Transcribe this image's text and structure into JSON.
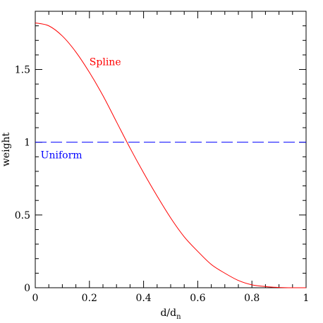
{
  "chart_data": {
    "type": "line",
    "title": "",
    "xlabel": "d/d",
    "xlabel_subscript": "n",
    "ylabel": "weight",
    "xlim": [
      0,
      1
    ],
    "ylim": [
      0,
      1.9
    ],
    "x_ticks": [
      "0",
      "0.2",
      "0.4",
      "0.6",
      "0.8",
      "1"
    ],
    "y_ticks": [
      "0",
      "0.5",
      "1",
      "1.5"
    ],
    "grid": false,
    "series": [
      {
        "name": "Spline",
        "color": "#ff0000",
        "style": "solid",
        "x": [
          0,
          0.05,
          0.1,
          0.15,
          0.2,
          0.25,
          0.3,
          0.35,
          0.4,
          0.45,
          0.5,
          0.55,
          0.6,
          0.65,
          0.7,
          0.75,
          0.8,
          0.85,
          0.9,
          0.95,
          1.0
        ],
        "y": [
          1.82,
          1.8,
          1.73,
          1.62,
          1.48,
          1.32,
          1.14,
          0.96,
          0.79,
          0.63,
          0.48,
          0.35,
          0.25,
          0.16,
          0.1,
          0.05,
          0.02,
          0.008,
          0.002,
          0.0,
          0.0
        ]
      },
      {
        "name": "Uniform",
        "color": "#0000ff",
        "style": "dashed",
        "x": [
          0,
          1
        ],
        "y": [
          1,
          1
        ]
      }
    ],
    "annotations": [
      {
        "text": "Spline",
        "x": 0.2,
        "y": 1.53,
        "color": "#ff0000"
      },
      {
        "text": "Uniform",
        "x": 0.02,
        "y": 0.89,
        "color": "#0000ff"
      }
    ]
  }
}
